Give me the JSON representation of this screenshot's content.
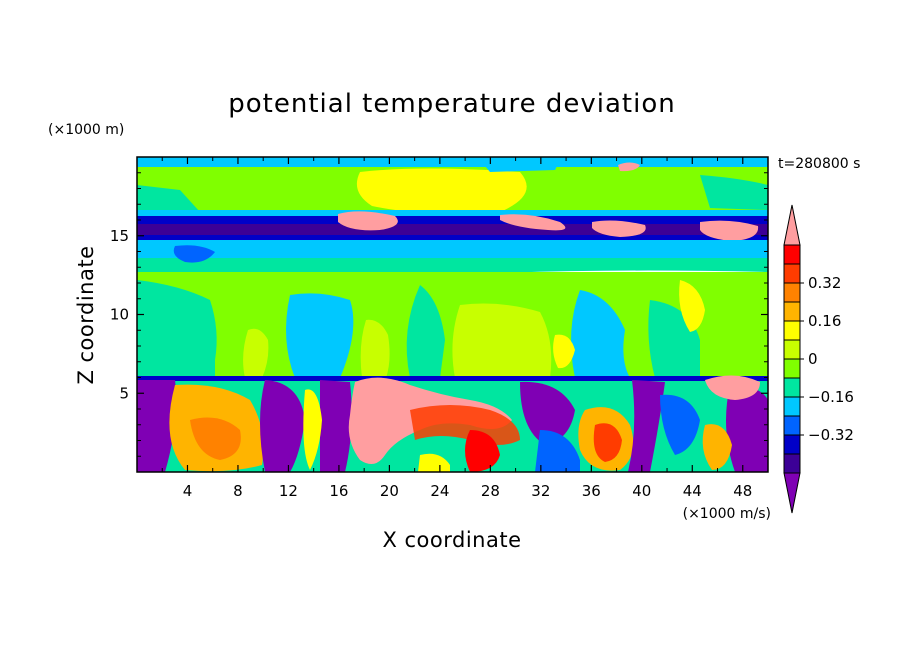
{
  "chart_data": {
    "type": "heatmap",
    "title": "potential temperature deviation",
    "xlabel": "X coordinate",
    "ylabel": "Z coordinate",
    "x_unit": "(×1000 m/s)",
    "y_unit": "(×1000 m)",
    "time_label": "t=280800 s",
    "xlim": [
      0,
      50
    ],
    "ylim": [
      0,
      20
    ],
    "x_ticks": [
      4,
      8,
      12,
      16,
      20,
      24,
      28,
      32,
      36,
      40,
      44,
      48
    ],
    "y_ticks": [
      5,
      10,
      15
    ],
    "colorbar": {
      "colors": [
        "#7f00b4",
        "#3c0096",
        "#0000c8",
        "#0064ff",
        "#00c8ff",
        "#00e6a0",
        "#80ff00",
        "#c8ff00",
        "#ffff00",
        "#ffb400",
        "#ff8200",
        "#ff3c00",
        "#ff0000",
        "#ff9ea0"
      ],
      "levels": [
        -0.4,
        -0.32,
        -0.24,
        -0.16,
        -0.08,
        0,
        0.08,
        0.16,
        0.24,
        0.32,
        0.4,
        0.48,
        0.56
      ],
      "labels": [
        "0.32",
        "0.16",
        "0",
        "−0.16",
        "−0.32"
      ],
      "label_values": [
        0.32,
        0.16,
        0,
        -0.16,
        -0.32
      ]
    }
  }
}
